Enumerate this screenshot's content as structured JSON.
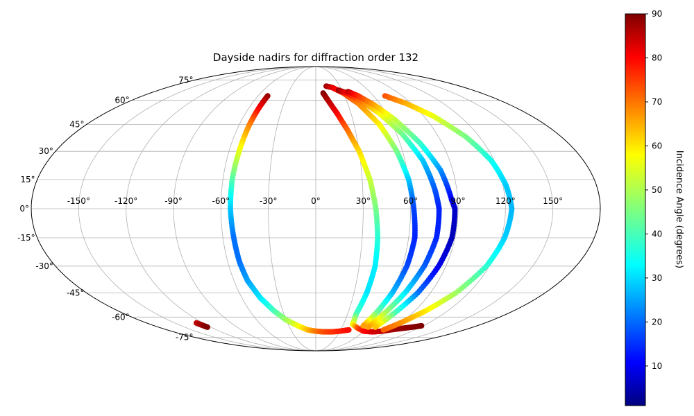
{
  "chart_data": {
    "type": "scatter",
    "projection": "mollweide",
    "title": "Dayside nadirs for diffraction order 132",
    "grid": true,
    "lon_ticks": [
      -150,
      -120,
      -90,
      -60,
      -30,
      0,
      30,
      60,
      90,
      120,
      150
    ],
    "lon_tick_labels": [
      "-150°",
      "-120°",
      "-90°",
      "-60°",
      "-30°",
      "0°",
      "30°",
      "60°",
      "90°",
      "120°",
      "150°"
    ],
    "lat_ticks": [
      -75,
      -60,
      -45,
      -30,
      -15,
      0,
      15,
      30,
      45,
      60,
      75
    ],
    "lat_tick_labels": [
      "-75°",
      "-60°",
      "-45°",
      "-30°",
      "-15°",
      "0°",
      "15°",
      "30°",
      "45°",
      "60°",
      "75°"
    ],
    "colorbar": {
      "label": "Incidence Angle (degrees)",
      "colormap": "jet",
      "range": [
        1,
        90
      ],
      "ticks": [
        10,
        20,
        30,
        40,
        50,
        60,
        70,
        80,
        90
      ],
      "tick_labels": [
        "10",
        "20",
        "30",
        "40",
        "50",
        "60",
        "70",
        "80",
        "90"
      ]
    },
    "series": [
      {
        "lon": [
          -50,
          -51,
          -52,
          -53,
          -54,
          -54,
          -53,
          -52,
          -50,
          -45,
          -38,
          -30,
          -20,
          -10,
          0,
          10,
          20,
          30,
          40
        ],
        "lat": [
          63,
          55,
          45,
          30,
          15,
          0,
          -15,
          -28,
          -38,
          -48,
          -56,
          -62,
          -66,
          -69,
          -70,
          -70.5,
          -70.5,
          -70,
          -69
        ],
        "incidence": [
          88,
          80,
          68,
          55,
          42,
          30,
          22,
          22,
          26,
          32,
          40,
          48,
          55,
          62,
          68,
          72,
          74,
          76,
          78
        ]
      },
      {
        "lon": [
          8,
          12,
          18,
          24,
          30,
          35,
          38,
          40,
          41,
          40,
          38,
          40,
          50,
          60,
          72,
          82,
          90,
          100,
          110,
          118
        ],
        "lat": [
          65,
          60,
          52,
          42,
          30,
          15,
          0,
          -15,
          -30,
          -45,
          -58,
          -65,
          -68,
          -70,
          -70.5,
          -70,
          -69,
          -68,
          -67,
          -66
        ],
        "incidence": [
          90,
          86,
          80,
          70,
          60,
          52,
          45,
          38,
          33,
          32,
          40,
          55,
          72,
          78,
          82,
          84,
          86,
          88,
          89,
          90
        ]
      },
      {
        "lon": [
          13,
          20,
          30,
          40,
          50,
          56,
          60,
          62,
          64,
          63,
          60,
          56,
          53
        ],
        "lat": [
          70,
          69,
          65,
          58,
          45,
          30,
          15,
          0,
          -15,
          -30,
          -45,
          -58,
          -66
        ],
        "incidence": [
          88,
          82,
          75,
          68,
          58,
          45,
          30,
          18,
          15,
          18,
          28,
          45,
          65
        ]
      },
      {
        "lon": [
          26,
          34,
          44,
          54,
          64,
          72,
          76,
          78,
          78,
          75,
          70,
          64,
          60
        ],
        "lat": [
          67,
          65,
          60,
          52,
          40,
          25,
          10,
          0,
          -15,
          -30,
          -45,
          -58,
          -67
        ],
        "incidence": [
          88,
          80,
          70,
          58,
          45,
          30,
          20,
          15,
          15,
          20,
          32,
          50,
          65
        ]
      },
      {
        "lon": [
          36,
          44,
          54,
          64,
          74,
          82,
          86,
          88,
          88,
          85,
          80,
          73,
          68
        ],
        "lat": [
          66,
          63,
          57,
          48,
          35,
          20,
          5,
          0,
          -15,
          -30,
          -45,
          -58,
          -67
        ],
        "incidence": [
          85,
          76,
          65,
          52,
          40,
          25,
          12,
          8,
          6,
          10,
          22,
          42,
          62
        ]
      },
      {
        "lon": [
          72,
          85,
          98,
          110,
          118,
          122,
          124,
          122,
          118,
          110,
          100,
          90,
          82
        ],
        "lat": [
          63,
          58,
          50,
          38,
          25,
          12,
          0,
          -15,
          -30,
          -45,
          -56,
          -64,
          -69
        ],
        "incidence": [
          72,
          64,
          55,
          45,
          36,
          30,
          28,
          30,
          38,
          48,
          58,
          66,
          70
        ]
      },
      {
        "lon": [
          -127,
          -126,
          -125,
          -124
        ],
        "lat": [
          -64,
          -65,
          -66,
          -67
        ],
        "incidence": [
          84,
          86,
          88,
          90
        ]
      }
    ]
  }
}
